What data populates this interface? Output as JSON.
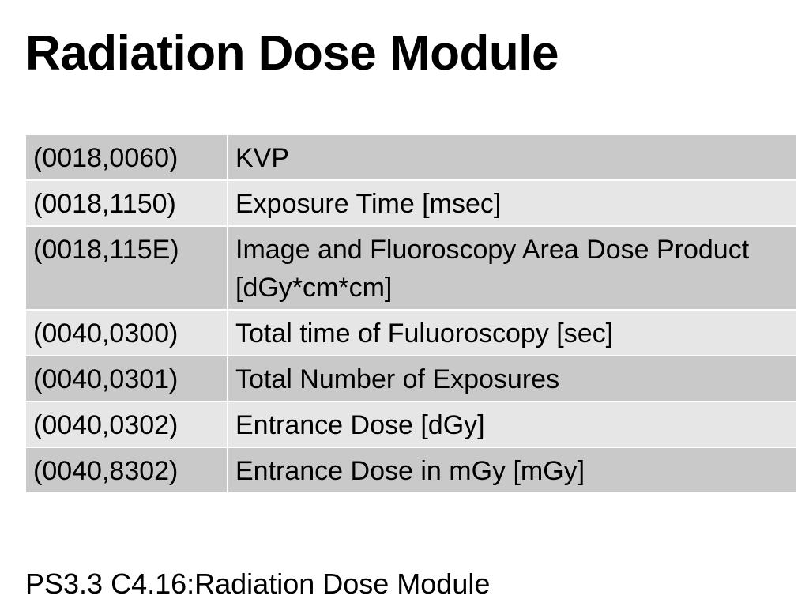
{
  "title": "Radiation Dose Module",
  "table": {
    "rows": [
      {
        "tag": "(0018,0060)",
        "description": "KVP"
      },
      {
        "tag": "(0018,1150)",
        "description": "Exposure Time [msec]"
      },
      {
        "tag": "(0018,115E)",
        "description": "Image and Fluoroscopy Area Dose Product [dGy*cm*cm]"
      },
      {
        "tag": "(0040,0300)",
        "description": "Total time of Fuluoroscopy [sec]"
      },
      {
        "tag": "(0040,0301)",
        "description": "Total Number of Exposures"
      },
      {
        "tag": "(0040,0302)",
        "description": "Entrance Dose [dGy]"
      },
      {
        "tag": "(0040,8302)",
        "description": "Entrance Dose in mGy [mGy]"
      }
    ]
  },
  "footer": "PS3.3 C4.16:Radiation Dose Module",
  "colors": {
    "row_dark": "#c9c9c9",
    "row_light": "#e6e6e6",
    "text": "#000000"
  }
}
